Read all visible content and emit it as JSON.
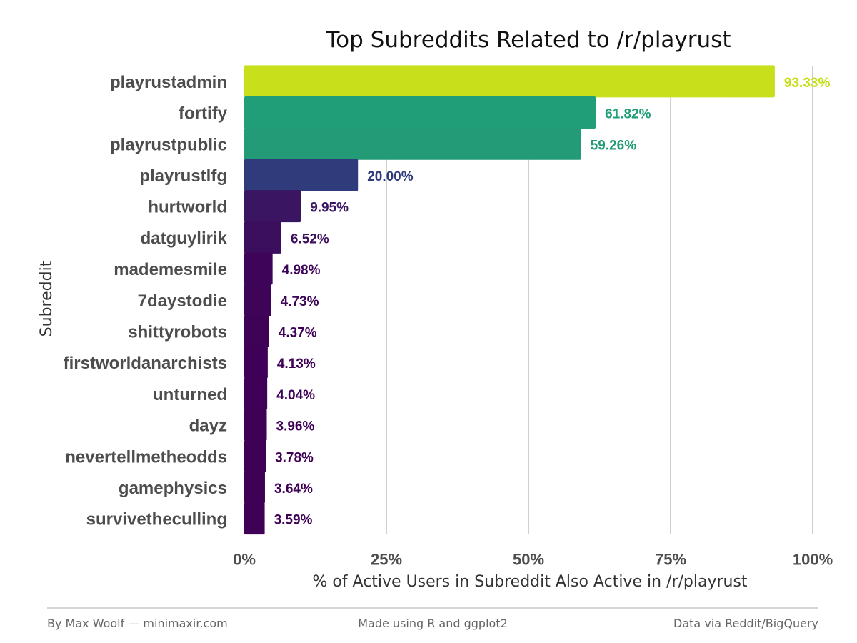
{
  "chart_data": {
    "type": "bar",
    "orientation": "horizontal",
    "title": "Top Subreddits Related to /r/playrust",
    "xlabel": "% of Active Users in Subreddit Also Active in /r/playrust",
    "ylabel": "Subreddit",
    "xlim": [
      0,
      100
    ],
    "x_ticks": [
      "0%",
      "25%",
      "50%",
      "75%",
      "100%"
    ],
    "categories": [
      "playrustadmin",
      "fortify",
      "playrustpublic",
      "playrustlfg",
      "hurtworld",
      "datguylirik",
      "mademesmile",
      "7daystodie",
      "shittyrobots",
      "firstworldanarchists",
      "unturned",
      "dayz",
      "nevertellmetheodds",
      "gamephysics",
      "survivetheculling"
    ],
    "values": [
      93.33,
      61.82,
      59.26,
      20.0,
      9.95,
      6.52,
      4.98,
      4.73,
      4.37,
      4.13,
      4.04,
      3.96,
      3.78,
      3.64,
      3.59
    ],
    "value_labels": [
      "93.33%",
      "61.82%",
      "59.26%",
      "20.00%",
      "9.95%",
      "6.52%",
      "4.98%",
      "4.73%",
      "4.37%",
      "4.13%",
      "4.04%",
      "3.96%",
      "3.78%",
      "3.64%",
      "3.59%"
    ],
    "colors": [
      "#c8e01b",
      "#1f9e77",
      "#239b76",
      "#2f3b7b",
      "#3a1662",
      "#3b0f5e",
      "#3d0459",
      "#3d0458",
      "#3e0257",
      "#3e0157",
      "#3e0157",
      "#3f0156",
      "#3f0156",
      "#3f0156",
      "#3f0156"
    ],
    "grid": true
  },
  "footer": {
    "left": "By Max Woolf — minimaxir.com",
    "center": "Made using R and ggplot2",
    "right": "Data via Reddit/BigQuery"
  }
}
